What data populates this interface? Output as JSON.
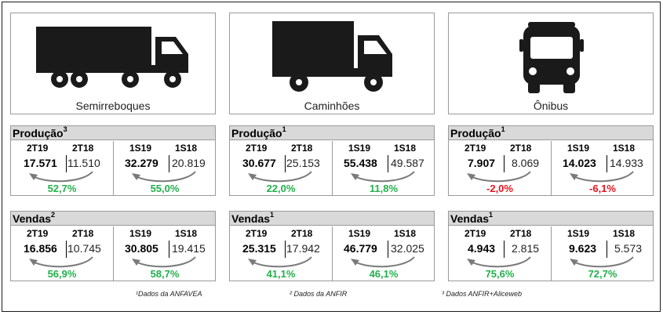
{
  "columns": [
    {
      "name": "Semirreboques",
      "icon": "semitrailer-truck-icon",
      "producao": {
        "label": "Produção",
        "sup": "3",
        "left": {
          "p1": "2T19",
          "p2": "2T18",
          "v1": "17.571",
          "v2": "11.510",
          "pct": "52,7%",
          "trend": "up"
        },
        "right": {
          "p1": "1S19",
          "p2": "1S18",
          "v1": "32.279",
          "v2": "20.819",
          "pct": "55,0%",
          "trend": "up"
        }
      },
      "vendas": {
        "label": "Vendas",
        "sup": "2",
        "left": {
          "p1": "2T19",
          "p2": "2T18",
          "v1": "16.856",
          "v2": "10.745",
          "pct": "56,9%",
          "trend": "up"
        },
        "right": {
          "p1": "1S19",
          "p2": "1S18",
          "v1": "30.805",
          "v2": "19.415",
          "pct": "58,7%",
          "trend": "up"
        }
      }
    },
    {
      "name": "Caminhões",
      "icon": "truck-icon",
      "producao": {
        "label": "Produção",
        "sup": "1",
        "left": {
          "p1": "2T19",
          "p2": "2T18",
          "v1": "30.677",
          "v2": "25.153",
          "pct": "22,0%",
          "trend": "up"
        },
        "right": {
          "p1": "1S19",
          "p2": "1S18",
          "v1": "55.438",
          "v2": "49.587",
          "pct": "11,8%",
          "trend": "up"
        }
      },
      "vendas": {
        "label": "Vendas",
        "sup": "1",
        "left": {
          "p1": "2T19",
          "p2": "2T18",
          "v1": "25.315",
          "v2": "17.942",
          "pct": "41,1%",
          "trend": "up"
        },
        "right": {
          "p1": "1S19",
          "p2": "1S18",
          "v1": "46.779",
          "v2": "32.025",
          "pct": "46,1%",
          "trend": "up"
        }
      }
    },
    {
      "name": "Ônibus",
      "icon": "bus-icon",
      "producao": {
        "label": "Produção",
        "sup": "1",
        "left": {
          "p1": "2T19",
          "p2": "2T18",
          "v1": "7.907",
          "v2": "8.069",
          "pct": "-2,0%",
          "trend": "down"
        },
        "right": {
          "p1": "1S19",
          "p2": "1S18",
          "v1": "14.023",
          "v2": "14.933",
          "pct": "-6,1%",
          "trend": "down"
        }
      },
      "vendas": {
        "label": "Vendas",
        "sup": "1",
        "left": {
          "p1": "2T19",
          "p2": "2T18",
          "v1": "4.943",
          "v2": "2.815",
          "pct": "75,6%",
          "trend": "up"
        },
        "right": {
          "p1": "1S19",
          "p2": "1S18",
          "v1": "9.623",
          "v2": "5.573",
          "pct": "72,7%",
          "trend": "up"
        }
      }
    }
  ],
  "footnotes": [
    "¹Dados da ANFAVEA",
    "² Dados da ANFIR",
    "³ Dados ANFIR+Aliceweb"
  ],
  "colors": {
    "up": "#22b04b",
    "down": "#e8141d",
    "header_bg": "#d9d9d9",
    "icon": "#1a1a1a"
  }
}
